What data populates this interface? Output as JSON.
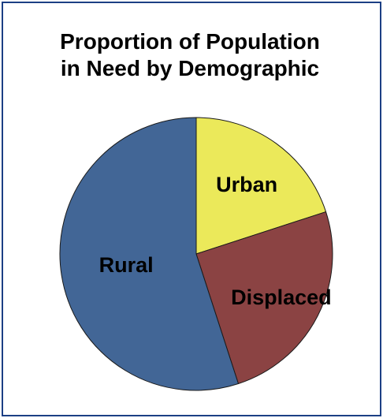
{
  "chart_data": {
    "type": "pie",
    "title_lines": [
      "Proportion of Population",
      "in Need by Demographic"
    ],
    "slices": [
      {
        "label": "Urban",
        "value": 20,
        "color": "#ebe95a"
      },
      {
        "label": "Displaced",
        "value": 25,
        "color": "#8b4343"
      },
      {
        "label": "Rural",
        "value": 55,
        "color": "#426696"
      }
    ],
    "start_angle_deg": 0,
    "direction": "clockwise",
    "legend": "none"
  }
}
